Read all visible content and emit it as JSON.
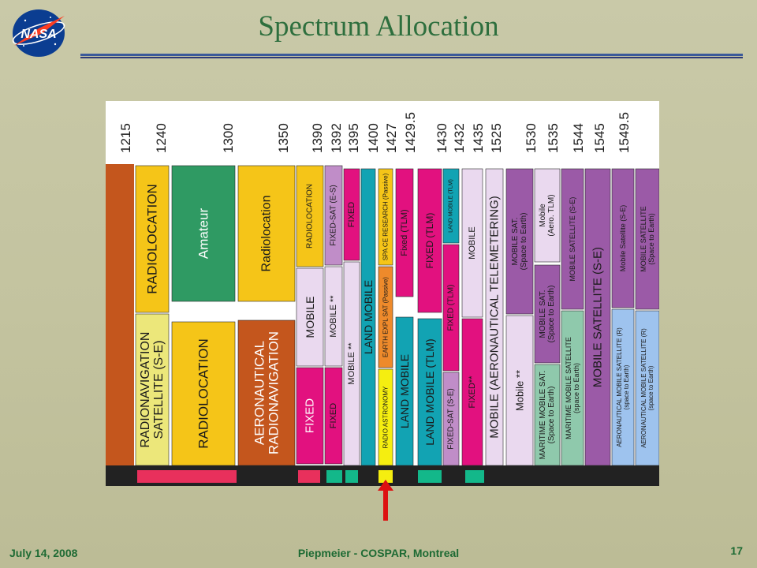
{
  "slide": {
    "title": "Spectrum Allocation",
    "logo_text": "NASA",
    "footer_date": "July 14, 2008",
    "footer_center": "Piepmeier - COSPAR, Montreal",
    "page_number": "17"
  },
  "frequencies": [
    "1215",
    "1240",
    "1300",
    "1350",
    "1390",
    "1392",
    "1395",
    "1400",
    "1427",
    "1429.5",
    "1430",
    "1432",
    "1435",
    "1525",
    "1530",
    "1535",
    "1544",
    "1545",
    "1549.5"
  ],
  "blocks": [
    {
      "id": "rad-loc-1",
      "lines": [
        "RADIOLOCATION"
      ],
      "fill": "#f5c518",
      "text": "#1a1a1a"
    },
    {
      "id": "rnss",
      "lines": [
        "RADIONAVIGATION",
        "SATELLITE (S-E)"
      ],
      "fill": "#ece77a",
      "text": "#1a1a1a"
    },
    {
      "id": "amateur",
      "lines": [
        "Amateur"
      ],
      "fill": "#2f9a63",
      "text": "#ffffff"
    },
    {
      "id": "rad-loc-2",
      "lines": [
        "RADIOLOCATION"
      ],
      "fill": "#f5c518",
      "text": "#1a1a1a"
    },
    {
      "id": "radiolocation-sec",
      "lines": [
        "Radiolocation"
      ],
      "fill": "#f5c518",
      "text": "#1a1a1a"
    },
    {
      "id": "aero-radionav",
      "lines": [
        "AERONAUTICAL",
        "RADIONAVIGATION"
      ],
      "fill": "#c4561d",
      "text": "#ffffff"
    },
    {
      "id": "rad-loc-3",
      "lines": [
        "RADIOLOCATION"
      ],
      "fill": "#f5c518",
      "text": "#1a1a1a"
    },
    {
      "id": "mobile-1",
      "lines": [
        "MOBILE"
      ],
      "fill": "#ead9ef",
      "text": "#1a1a1a"
    },
    {
      "id": "fixed-1",
      "lines": [
        "FIXED"
      ],
      "fill": "#e2117f",
      "text": "#ffffff"
    },
    {
      "id": "fixed-sat-es",
      "lines": [
        "FIXED-SAT     (E-S)"
      ],
      "fill": "#c08dc8",
      "text": "#1a1a1a"
    },
    {
      "id": "mobile-2",
      "lines": [
        "MOBILE  **"
      ],
      "fill": "#ead9ef",
      "text": "#1a1a1a"
    },
    {
      "id": "fixed-2",
      "lines": [
        "FIXED"
      ],
      "fill": "#e2117f",
      "text": "#1a1a1a"
    },
    {
      "id": "fixed-3",
      "lines": [
        "FIXED"
      ],
      "fill": "#e2117f",
      "text": "#1a1a1a"
    },
    {
      "id": "mobile-3",
      "lines": [
        "MOBILE  **"
      ],
      "fill": "#ead9ef",
      "text": "#1a1a1a"
    },
    {
      "id": "land-mobile-1",
      "lines": [
        "LAND MOBILE"
      ],
      "fill": "#12a3b3",
      "text": "#1a1a1a"
    },
    {
      "id": "space-research",
      "lines": [
        "SPA CE   RESEARCH  (Passive)"
      ],
      "fill": "#f5c518",
      "text": "#1a1a1a"
    },
    {
      "id": "eess",
      "lines": [
        "EARTH EXPL SAT (Passive)"
      ],
      "fill": "#ee8a2b",
      "text": "#1a1a1a"
    },
    {
      "id": "radio-astronomy",
      "lines": [
        "RADIO    ASTRONOMY"
      ],
      "fill": "#f5ee10",
      "text": "#1a1a1a"
    },
    {
      "id": "fixed-tlm-1",
      "lines": [
        "Fixed  (TLM)"
      ],
      "fill": "#e2117f",
      "text": "#1a1a1a"
    },
    {
      "id": "land-mobile-2",
      "lines": [
        "LAND MOBILE"
      ],
      "fill": "#12a3b3",
      "text": "#1a1a1a"
    },
    {
      "id": "fixed-tlm-2",
      "lines": [
        "FIXED  (TLM)"
      ],
      "fill": "#e2117f",
      "text": "#1a1a1a"
    },
    {
      "id": "land-mobile-tlm-1",
      "lines": [
        "LAND MOBILE  (TLM)"
      ],
      "fill": "#12a3b3",
      "text": "#1a1a1a"
    },
    {
      "id": "land-mobile-tlm-2",
      "lines": [
        "LAND MOBILE  (TLM)"
      ],
      "fill": "#12a3b3",
      "text": "#1a1a1a"
    },
    {
      "id": "fixed-tlm-3",
      "lines": [
        "FIXED  (TLM)"
      ],
      "fill": "#e2117f",
      "text": "#1a1a1a"
    },
    {
      "id": "fixed-sat-se",
      "lines": [
        "FIXED-SAT     (S-E)"
      ],
      "fill": "#c08dc8",
      "text": "#1a1a1a"
    },
    {
      "id": "mobile-4",
      "lines": [
        "MOBILE"
      ],
      "fill": "#ead9ef",
      "text": "#1a1a1a"
    },
    {
      "id": "fixed-4",
      "lines": [
        "FIXED**"
      ],
      "fill": "#e2117f",
      "text": "#1a1a1a"
    },
    {
      "id": "mobile-aero-tlm",
      "lines": [
        "MOBILE  (AERONAUTICAL TELEMETERING)"
      ],
      "fill": "#ead9ef",
      "text": "#1a1a1a"
    },
    {
      "id": "mobile-sat-1",
      "lines": [
        "MOBILE SAT.",
        "(Space to Earth)"
      ],
      "fill": "#9b5aa7",
      "text": "#1a1a1a"
    },
    {
      "id": "mobile-star",
      "lines": [
        "Mobile  **"
      ],
      "fill": "#ead9ef",
      "text": "#1a1a1a"
    },
    {
      "id": "mobile-aero-tlm-2",
      "lines": [
        "Mobile",
        "(Aero. TLM)"
      ],
      "fill": "#ead9ef",
      "text": "#1a1a1a"
    },
    {
      "id": "mobile-sat-2",
      "lines": [
        "MOBILE SAT.",
        "(Space to Earth)"
      ],
      "fill": "#9b5aa7",
      "text": "#1a1a1a"
    },
    {
      "id": "maritime-1",
      "lines": [
        "MARITIME MOBILE SAT.",
        "(Space to Earth)"
      ],
      "fill": "#8fc9ac",
      "text": "#1a1a1a"
    },
    {
      "id": "mobile-sat-se",
      "lines": [
        "MOBILE SATELLITE (S-E)"
      ],
      "fill": "#9b5aa7",
      "text": "#1a1a1a"
    },
    {
      "id": "maritime-2",
      "lines": [
        "MARITIME MOBILE SATELLITE",
        "(space to Earth)"
      ],
      "fill": "#8fc9ac",
      "text": "#1a1a1a"
    },
    {
      "id": "mobile-satellite-se-big",
      "lines": [
        "MOBILE SATELLITE (S-E)"
      ],
      "fill": "#9b5aa7",
      "text": "#1a1a1a"
    },
    {
      "id": "mobile-sat-se-small",
      "lines": [
        "Mobile Satellite  (S-E)"
      ],
      "fill": "#9b5aa7",
      "text": "#1a1a1a"
    },
    {
      "id": "aero-mss-1",
      "lines": [
        "AERONAUTICAL MOBILE SATELLITE (R)",
        "(space to Earth)"
      ],
      "fill": "#9ec3ee",
      "text": "#1a1a1a"
    },
    {
      "id": "mobile-sat-last",
      "lines": [
        "MOBILE SATELLITE",
        "(Space to Earth)"
      ],
      "fill": "#9b5aa7",
      "text": "#1a1a1a"
    },
    {
      "id": "aero-mss-2",
      "lines": [
        "AERONAUTICAL MOBILE SATELLITE (R)",
        "(space to Earth)"
      ],
      "fill": "#9ec3ee",
      "text": "#1a1a1a"
    }
  ],
  "colors": {
    "slide_bg": "#c6c6a3",
    "title": "#2e6f3e",
    "footer": "#1d6a33",
    "table_edge": "#c4561d",
    "bottom_bar": "#222222",
    "arrow": "#dd1111"
  }
}
